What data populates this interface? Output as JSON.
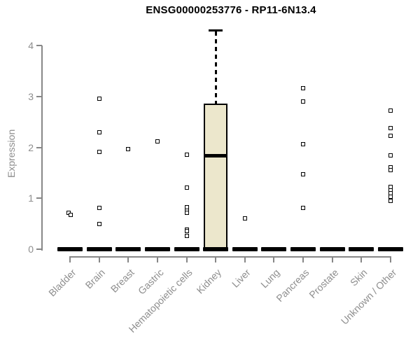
{
  "title": "ENSG00000253776 - RP11-6N13.4",
  "colors": {
    "box_fill": "#ECE7CC",
    "box_stroke": "#000000",
    "axis": "#878787",
    "axis_text": "#8e8e8e",
    "title_text": "#000000",
    "background": "#ffffff"
  },
  "chart_data": {
    "type": "boxplot",
    "title": "ENSG00000253776 - RP11-6N13.4",
    "xlabel": "",
    "ylabel": "Expression",
    "ylim": [
      0,
      4.4
    ],
    "yticks": [
      0,
      1,
      2,
      3,
      4
    ],
    "grid": false,
    "legend": false,
    "categories": [
      "Bladder",
      "Brain",
      "Breast",
      "Gastric",
      "Hematopoietic cells",
      "Kidney",
      "Liver",
      "Lung",
      "Pancreas",
      "Prostate",
      "Skin",
      "Unknown / Other"
    ],
    "boxes": [
      {
        "category": "Bladder",
        "whisker_low": 0,
        "q1": 0,
        "median": 0,
        "q3": 0,
        "whisker_high": 0,
        "outliers": [
          [
            0.71,
            -2
          ],
          [
            0.67,
            1
          ]
        ]
      },
      {
        "category": "Brain",
        "whisker_low": 0,
        "q1": 0,
        "median": 0,
        "q3": 0,
        "whisker_high": 0,
        "outliers": [
          [
            2.96,
            0
          ],
          [
            2.29,
            0
          ],
          [
            1.91,
            0
          ],
          [
            0.81,
            0
          ],
          [
            0.49,
            0
          ]
        ]
      },
      {
        "category": "Breast",
        "whisker_low": 0,
        "q1": 0,
        "median": 0,
        "q3": 0,
        "whisker_high": 0,
        "outliers": [
          [
            1.97,
            0
          ]
        ]
      },
      {
        "category": "Gastric",
        "whisker_low": 0,
        "q1": 0,
        "median": 0,
        "q3": 0,
        "whisker_high": 0,
        "outliers": [
          [
            2.12,
            0
          ]
        ]
      },
      {
        "category": "Hematopoietic cells",
        "whisker_low": 0,
        "q1": 0,
        "median": 0,
        "q3": 0,
        "whisker_high": 0,
        "outliers": [
          [
            1.86,
            0
          ],
          [
            1.21,
            0
          ],
          [
            0.82,
            0
          ],
          [
            0.75,
            0
          ],
          [
            0.71,
            0
          ],
          [
            0.39,
            0
          ],
          [
            0.36,
            0
          ],
          [
            0.26,
            0
          ]
        ]
      },
      {
        "category": "Kidney",
        "whisker_low": 0,
        "q1": 0,
        "median": 1.83,
        "q3": 2.86,
        "whisker_high": 4.3,
        "outliers": []
      },
      {
        "category": "Liver",
        "whisker_low": 0,
        "q1": 0,
        "median": 0,
        "q3": 0,
        "whisker_high": 0,
        "outliers": [
          [
            0.6,
            0
          ]
        ]
      },
      {
        "category": "Lung",
        "whisker_low": 0,
        "q1": 0,
        "median": 0,
        "q3": 0,
        "whisker_high": 0,
        "outliers": []
      },
      {
        "category": "Pancreas",
        "whisker_low": 0,
        "q1": 0,
        "median": 0,
        "q3": 0,
        "whisker_high": 0,
        "outliers": [
          [
            3.16,
            0
          ],
          [
            2.9,
            0
          ],
          [
            2.06,
            0
          ],
          [
            1.47,
            0
          ],
          [
            0.81,
            0
          ]
        ]
      },
      {
        "category": "Prostate",
        "whisker_low": 0,
        "q1": 0,
        "median": 0,
        "q3": 0,
        "whisker_high": 0,
        "outliers": []
      },
      {
        "category": "Skin",
        "whisker_low": 0,
        "q1": 0,
        "median": 0,
        "q3": 0,
        "whisker_high": 0,
        "outliers": []
      },
      {
        "category": "Unknown / Other",
        "whisker_low": 0,
        "q1": 0,
        "median": 0,
        "q3": 0,
        "whisker_high": 0,
        "outliers": [
          [
            2.72,
            0
          ],
          [
            2.38,
            0
          ],
          [
            2.23,
            0
          ],
          [
            1.84,
            0
          ],
          [
            1.61,
            0
          ],
          [
            1.55,
            0
          ],
          [
            1.22,
            0
          ],
          [
            1.16,
            0
          ],
          [
            1.1,
            0
          ],
          [
            1.03,
            0
          ],
          [
            0.95,
            0
          ]
        ]
      }
    ]
  }
}
